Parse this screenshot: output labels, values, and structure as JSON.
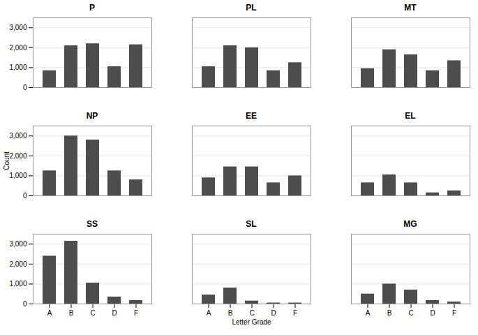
{
  "chart_data": [
    {
      "type": "bar",
      "title": "P",
      "categories": [
        "A",
        "B",
        "C",
        "D",
        "F"
      ],
      "values": [
        850,
        2100,
        2200,
        1050,
        2150
      ],
      "color": "#4d4d4d",
      "ylim": [
        0,
        3500
      ],
      "yticks": [
        0,
        1000,
        2000,
        3000
      ],
      "grid": true,
      "tick_labels": "y"
    },
    {
      "type": "bar",
      "title": "PL",
      "categories": [
        "A",
        "B",
        "C",
        "D",
        "F"
      ],
      "values": [
        1050,
        2100,
        2000,
        850,
        1250
      ],
      "color": "#4d4d4d",
      "ylim": [
        0,
        3500
      ],
      "yticks": [
        0,
        1000,
        2000,
        3000
      ],
      "grid": true,
      "tick_labels": false
    },
    {
      "type": "bar",
      "title": "MT",
      "categories": [
        "A",
        "B",
        "C",
        "D",
        "F"
      ],
      "values": [
        950,
        1900,
        1650,
        850,
        1350
      ],
      "color": "#4d4d4d",
      "ylim": [
        0,
        3500
      ],
      "yticks": [
        0,
        1000,
        2000,
        3000
      ],
      "grid": true,
      "tick_labels": false
    },
    {
      "type": "bar",
      "title": "NP",
      "categories": [
        "A",
        "B",
        "C",
        "D",
        "F"
      ],
      "values": [
        1250,
        3000,
        2800,
        1250,
        800
      ],
      "color": "#4d4d4d",
      "ylim": [
        0,
        3500
      ],
      "yticks": [
        0,
        1000,
        2000,
        3000
      ],
      "grid": true,
      "tick_labels": "y",
      "ylabel": "Count"
    },
    {
      "type": "bar",
      "title": "EE",
      "categories": [
        "A",
        "B",
        "C",
        "D",
        "F"
      ],
      "values": [
        900,
        1450,
        1450,
        650,
        1000
      ],
      "color": "#4d4d4d",
      "ylim": [
        0,
        3500
      ],
      "yticks": [
        0,
        1000,
        2000,
        3000
      ],
      "grid": true,
      "tick_labels": false
    },
    {
      "type": "bar",
      "title": "EL",
      "categories": [
        "A",
        "B",
        "C",
        "D",
        "F"
      ],
      "values": [
        650,
        1050,
        650,
        150,
        250
      ],
      "color": "#4d4d4d",
      "ylim": [
        0,
        3500
      ],
      "yticks": [
        0,
        1000,
        2000,
        3000
      ],
      "grid": true,
      "tick_labels": false
    },
    {
      "type": "bar",
      "title": "SS",
      "categories": [
        "A",
        "B",
        "C",
        "D",
        "F"
      ],
      "values": [
        2400,
        3150,
        1050,
        350,
        175
      ],
      "color": "#4d4d4d",
      "ylim": [
        0,
        3500
      ],
      "yticks": [
        0,
        1000,
        2000,
        3000
      ],
      "grid": true
    },
    {
      "type": "bar",
      "title": "SL",
      "categories": [
        "A",
        "B",
        "C",
        "D",
        "F"
      ],
      "values": [
        450,
        800,
        150,
        50,
        50
      ],
      "color": "#4d4d4d",
      "ylim": [
        0,
        3500
      ],
      "yticks": [
        0,
        1000,
        2000,
        3000
      ],
      "grid": true,
      "tick_labels": "x",
      "xlabel": "Letter Grade"
    },
    {
      "type": "bar",
      "title": "MG",
      "categories": [
        "A",
        "B",
        "C",
        "D",
        "F"
      ],
      "values": [
        500,
        1000,
        700,
        175,
        100
      ],
      "color": "#4d4d4d",
      "ylim": [
        0,
        3500
      ],
      "yticks": [
        0,
        1000,
        2000,
        3000
      ],
      "grid": true,
      "tick_labels": "x"
    }
  ]
}
